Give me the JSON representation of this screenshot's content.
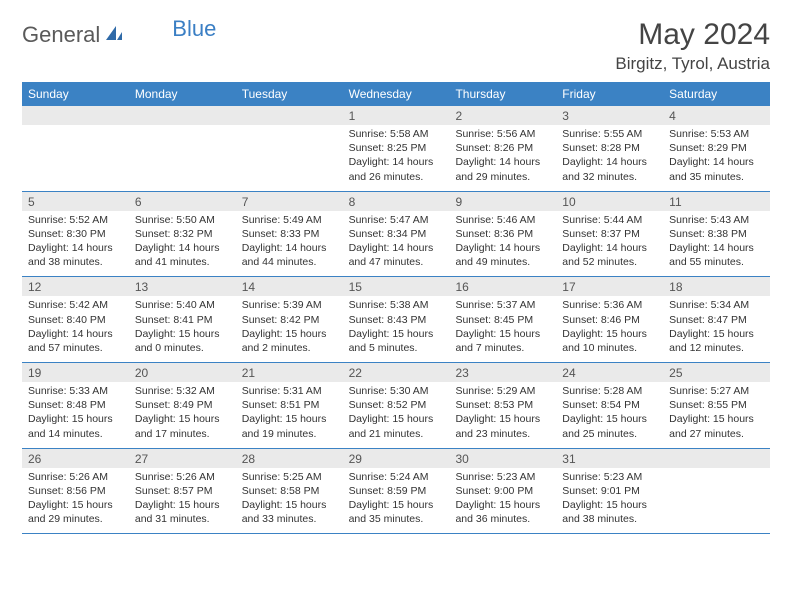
{
  "logo": {
    "text1": "General",
    "text2": "Blue"
  },
  "title": "May 2024",
  "location": "Birgitz, Tyrol, Austria",
  "header_color": "#3b82c4",
  "band_color": "#eaeaea",
  "weekdays": [
    "Sunday",
    "Monday",
    "Tuesday",
    "Wednesday",
    "Thursday",
    "Friday",
    "Saturday"
  ],
  "weeks": [
    {
      "nums": [
        "",
        "",
        "",
        "1",
        "2",
        "3",
        "4"
      ],
      "cells": [
        {},
        {},
        {},
        {
          "sunrise": "Sunrise: 5:58 AM",
          "sunset": "Sunset: 8:25 PM",
          "daylight": "Daylight: 14 hours and 26 minutes."
        },
        {
          "sunrise": "Sunrise: 5:56 AM",
          "sunset": "Sunset: 8:26 PM",
          "daylight": "Daylight: 14 hours and 29 minutes."
        },
        {
          "sunrise": "Sunrise: 5:55 AM",
          "sunset": "Sunset: 8:28 PM",
          "daylight": "Daylight: 14 hours and 32 minutes."
        },
        {
          "sunrise": "Sunrise: 5:53 AM",
          "sunset": "Sunset: 8:29 PM",
          "daylight": "Daylight: 14 hours and 35 minutes."
        }
      ]
    },
    {
      "nums": [
        "5",
        "6",
        "7",
        "8",
        "9",
        "10",
        "11"
      ],
      "cells": [
        {
          "sunrise": "Sunrise: 5:52 AM",
          "sunset": "Sunset: 8:30 PM",
          "daylight": "Daylight: 14 hours and 38 minutes."
        },
        {
          "sunrise": "Sunrise: 5:50 AM",
          "sunset": "Sunset: 8:32 PM",
          "daylight": "Daylight: 14 hours and 41 minutes."
        },
        {
          "sunrise": "Sunrise: 5:49 AM",
          "sunset": "Sunset: 8:33 PM",
          "daylight": "Daylight: 14 hours and 44 minutes."
        },
        {
          "sunrise": "Sunrise: 5:47 AM",
          "sunset": "Sunset: 8:34 PM",
          "daylight": "Daylight: 14 hours and 47 minutes."
        },
        {
          "sunrise": "Sunrise: 5:46 AM",
          "sunset": "Sunset: 8:36 PM",
          "daylight": "Daylight: 14 hours and 49 minutes."
        },
        {
          "sunrise": "Sunrise: 5:44 AM",
          "sunset": "Sunset: 8:37 PM",
          "daylight": "Daylight: 14 hours and 52 minutes."
        },
        {
          "sunrise": "Sunrise: 5:43 AM",
          "sunset": "Sunset: 8:38 PM",
          "daylight": "Daylight: 14 hours and 55 minutes."
        }
      ]
    },
    {
      "nums": [
        "12",
        "13",
        "14",
        "15",
        "16",
        "17",
        "18"
      ],
      "cells": [
        {
          "sunrise": "Sunrise: 5:42 AM",
          "sunset": "Sunset: 8:40 PM",
          "daylight": "Daylight: 14 hours and 57 minutes."
        },
        {
          "sunrise": "Sunrise: 5:40 AM",
          "sunset": "Sunset: 8:41 PM",
          "daylight": "Daylight: 15 hours and 0 minutes."
        },
        {
          "sunrise": "Sunrise: 5:39 AM",
          "sunset": "Sunset: 8:42 PM",
          "daylight": "Daylight: 15 hours and 2 minutes."
        },
        {
          "sunrise": "Sunrise: 5:38 AM",
          "sunset": "Sunset: 8:43 PM",
          "daylight": "Daylight: 15 hours and 5 minutes."
        },
        {
          "sunrise": "Sunrise: 5:37 AM",
          "sunset": "Sunset: 8:45 PM",
          "daylight": "Daylight: 15 hours and 7 minutes."
        },
        {
          "sunrise": "Sunrise: 5:36 AM",
          "sunset": "Sunset: 8:46 PM",
          "daylight": "Daylight: 15 hours and 10 minutes."
        },
        {
          "sunrise": "Sunrise: 5:34 AM",
          "sunset": "Sunset: 8:47 PM",
          "daylight": "Daylight: 15 hours and 12 minutes."
        }
      ]
    },
    {
      "nums": [
        "19",
        "20",
        "21",
        "22",
        "23",
        "24",
        "25"
      ],
      "cells": [
        {
          "sunrise": "Sunrise: 5:33 AM",
          "sunset": "Sunset: 8:48 PM",
          "daylight": "Daylight: 15 hours and 14 minutes."
        },
        {
          "sunrise": "Sunrise: 5:32 AM",
          "sunset": "Sunset: 8:49 PM",
          "daylight": "Daylight: 15 hours and 17 minutes."
        },
        {
          "sunrise": "Sunrise: 5:31 AM",
          "sunset": "Sunset: 8:51 PM",
          "daylight": "Daylight: 15 hours and 19 minutes."
        },
        {
          "sunrise": "Sunrise: 5:30 AM",
          "sunset": "Sunset: 8:52 PM",
          "daylight": "Daylight: 15 hours and 21 minutes."
        },
        {
          "sunrise": "Sunrise: 5:29 AM",
          "sunset": "Sunset: 8:53 PM",
          "daylight": "Daylight: 15 hours and 23 minutes."
        },
        {
          "sunrise": "Sunrise: 5:28 AM",
          "sunset": "Sunset: 8:54 PM",
          "daylight": "Daylight: 15 hours and 25 minutes."
        },
        {
          "sunrise": "Sunrise: 5:27 AM",
          "sunset": "Sunset: 8:55 PM",
          "daylight": "Daylight: 15 hours and 27 minutes."
        }
      ]
    },
    {
      "nums": [
        "26",
        "27",
        "28",
        "29",
        "30",
        "31",
        ""
      ],
      "cells": [
        {
          "sunrise": "Sunrise: 5:26 AM",
          "sunset": "Sunset: 8:56 PM",
          "daylight": "Daylight: 15 hours and 29 minutes."
        },
        {
          "sunrise": "Sunrise: 5:26 AM",
          "sunset": "Sunset: 8:57 PM",
          "daylight": "Daylight: 15 hours and 31 minutes."
        },
        {
          "sunrise": "Sunrise: 5:25 AM",
          "sunset": "Sunset: 8:58 PM",
          "daylight": "Daylight: 15 hours and 33 minutes."
        },
        {
          "sunrise": "Sunrise: 5:24 AM",
          "sunset": "Sunset: 8:59 PM",
          "daylight": "Daylight: 15 hours and 35 minutes."
        },
        {
          "sunrise": "Sunrise: 5:23 AM",
          "sunset": "Sunset: 9:00 PM",
          "daylight": "Daylight: 15 hours and 36 minutes."
        },
        {
          "sunrise": "Sunrise: 5:23 AM",
          "sunset": "Sunset: 9:01 PM",
          "daylight": "Daylight: 15 hours and 38 minutes."
        },
        {}
      ]
    }
  ]
}
